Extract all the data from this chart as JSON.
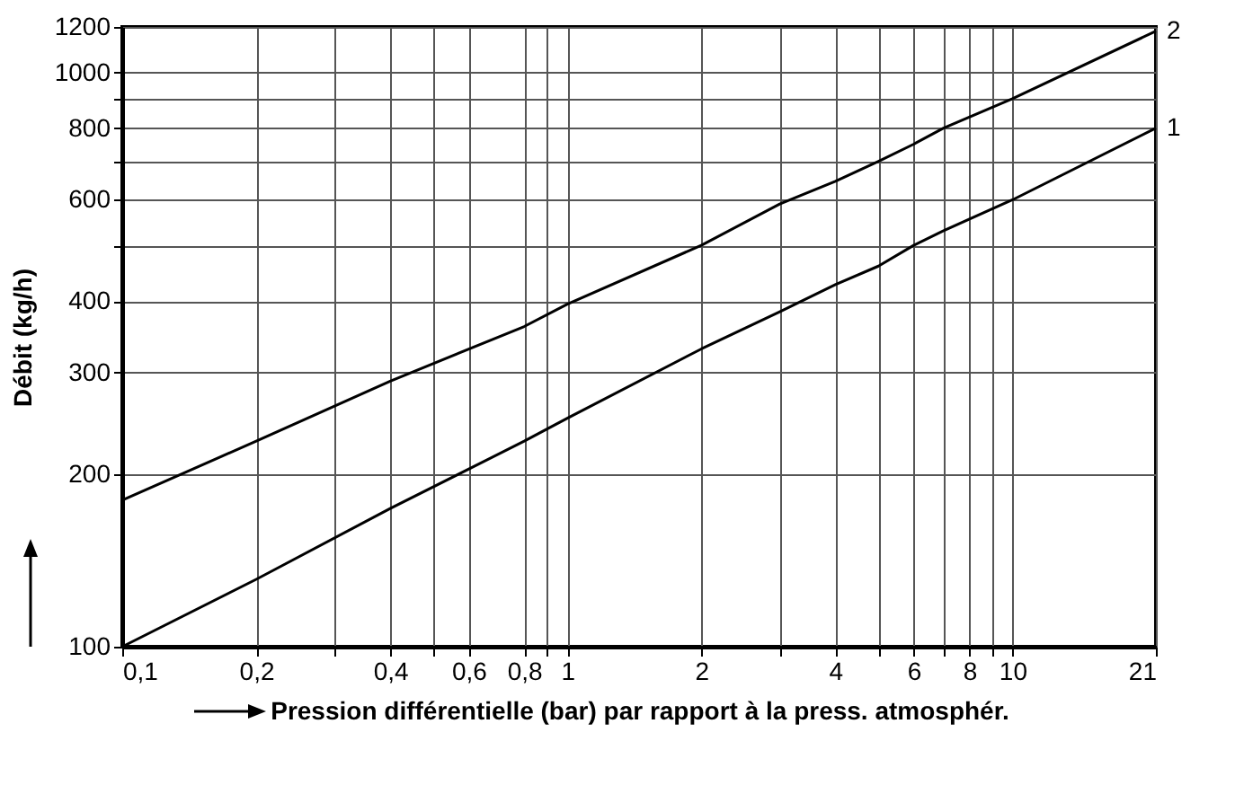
{
  "chart_data": {
    "type": "line",
    "xlabel": "Pression différentielle (bar) par rapport à la press. atmosphér.",
    "ylabel": "Débit (kg/h)",
    "log": "xy",
    "grid": true,
    "x": [
      0.1,
      0.2,
      0.4,
      0.8,
      1,
      2,
      3,
      4,
      5,
      6,
      7,
      10,
      21
    ],
    "series": [
      {
        "name": "1",
        "color": "#000000",
        "values": [
          100,
          131,
          174,
          228,
          250,
          330,
          383,
          427,
          460,
          500,
          530,
          600,
          800
        ]
      },
      {
        "name": "2",
        "color": "#000000",
        "values": [
          180,
          228,
          290,
          361,
          395,
          500,
          590,
          646,
          700,
          750,
          800,
          900,
          1180
        ]
      }
    ],
    "xlim": [
      0.1,
      21
    ],
    "ylim": [
      100,
      1200
    ],
    "xticks": [
      {
        "value": 0.1,
        "label": "0,1"
      },
      {
        "value": 0.2,
        "label": "0,2"
      },
      {
        "value": 0.3,
        "label": null
      },
      {
        "value": 0.4,
        "label": "0,4"
      },
      {
        "value": 0.5,
        "label": null
      },
      {
        "value": 0.6,
        "label": "0,6"
      },
      {
        "value": 0.8,
        "label": "0,8"
      },
      {
        "value": 0.9,
        "label": null
      },
      1,
      2,
      {
        "value": 3,
        "label": null
      },
      4,
      {
        "value": 5,
        "label": null
      },
      6,
      {
        "value": 7,
        "label": null
      },
      8,
      {
        "value": 9,
        "label": null
      },
      10,
      21
    ],
    "yticks": [
      100,
      200,
      300,
      400,
      {
        "value": 500,
        "label": null
      },
      600,
      {
        "value": 700,
        "label": null
      },
      800,
      {
        "value": 900,
        "label": null
      },
      1000,
      1200
    ]
  }
}
